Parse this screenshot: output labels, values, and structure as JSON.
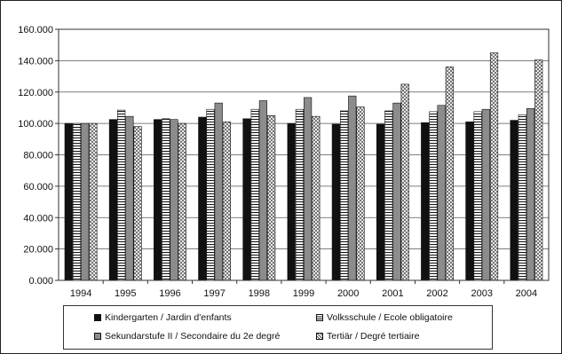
{
  "chart_data": {
    "type": "bar",
    "categories": [
      "1994",
      "1995",
      "1996",
      "1997",
      "1998",
      "1999",
      "2000",
      "2001",
      "2002",
      "2003",
      "2004"
    ],
    "series": [
      {
        "name": "Kindergarten / Jardin d'enfants",
        "values": [
          100,
          102.5,
          102.5,
          104,
          103,
          100,
          99.5,
          99.5,
          100.5,
          101,
          102
        ]
      },
      {
        "name": "Volksschule / Ecole obligatoire",
        "values": [
          100,
          108.5,
          103,
          109,
          109,
          109,
          108,
          108,
          107.5,
          107.5,
          105.5
        ]
      },
      {
        "name": "Sekundarstufe II / Secondaire du 2e degré",
        "values": [
          100,
          104.5,
          102.5,
          113,
          114.5,
          116.5,
          117.5,
          113,
          111.5,
          109,
          109.5
        ]
      },
      {
        "name": "Tertiär / Degré tertiaire",
        "values": [
          100,
          98,
          100,
          101,
          105,
          104.5,
          110.5,
          125,
          136,
          145,
          140.5
        ]
      }
    ],
    "ylim": [
      0,
      160
    ],
    "yticks": [
      "0.000",
      "20.000",
      "40.000",
      "60.000",
      "80.000",
      "100.000",
      "120.000",
      "140.000",
      "160.000"
    ],
    "grid": true,
    "legend_position": "bottom"
  }
}
